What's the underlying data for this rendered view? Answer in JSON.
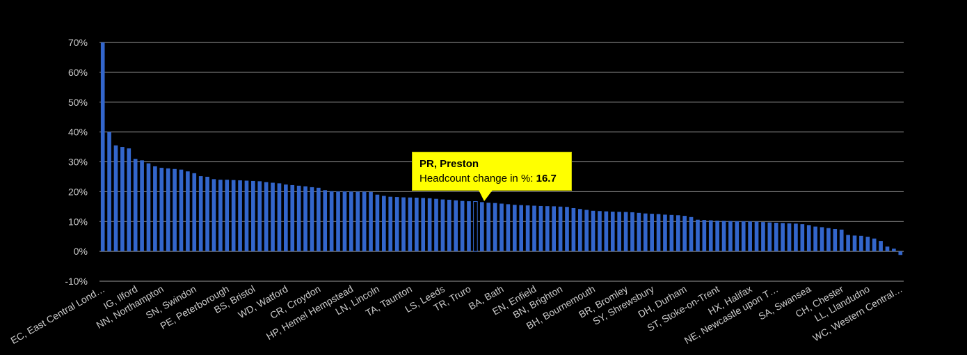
{
  "chart_data": {
    "type": "bar",
    "title": "",
    "xlabel": "",
    "ylabel": "",
    "ylim": [
      -10,
      70
    ],
    "yticks": [
      "70%",
      "60%",
      "50%",
      "40%",
      "30%",
      "20%",
      "10%",
      "0%",
      "-10%"
    ],
    "grid": true,
    "bar_color": "#3366cc",
    "background": "#000000",
    "x_tick_labels": [
      "EC, East Central Lond…",
      "IG, Ilford",
      "NN, Northampton",
      "SN, Swindon",
      "PE, Peterborough",
      "BS, Bristol",
      "WD, Watford",
      "CR, Croydon",
      "HP, Hemel Hempstead",
      "LN, Lincoln",
      "TA, Taunton",
      "LS, Leeds",
      "TR, Truro",
      "BA, Bath",
      "EN, Enfield",
      "BN, Brighton",
      "BH, Bournemouth",
      "BR, Bromley",
      "SY, Shrewsbury",
      "DH, Durham",
      "ST, Stoke-on-Trent",
      "HX, Halifax",
      "NE, Newcastle upon T…",
      "SA, Swansea",
      "CH, Chester",
      "LL, Llandudno",
      "WC, Western Central…"
    ],
    "values": [
      70,
      40,
      35.5,
      35,
      34.5,
      31,
      30.5,
      29.5,
      28.5,
      28,
      27.8,
      27.6,
      27.4,
      26.8,
      26.2,
      25.2,
      25,
      24.2,
      24,
      24,
      23.9,
      23.8,
      23.7,
      23.6,
      23.5,
      23.2,
      23,
      22.8,
      22.4,
      22.2,
      22,
      21.8,
      21.5,
      21.3,
      20.5,
      20.2,
      20.1,
      20.1,
      20.05,
      20,
      20,
      19.9,
      19,
      18.6,
      18.3,
      18.2,
      18.1,
      18.05,
      18,
      17.9,
      17.8,
      17.6,
      17.4,
      17.3,
      17.1,
      16.9,
      16.8,
      16.7,
      16.5,
      16.3,
      16.2,
      16,
      15.8,
      15.6,
      15.5,
      15.4,
      15.3,
      15.2,
      15.15,
      15.1,
      15,
      14.9,
      14.5,
      14.2,
      13.9,
      13.6,
      13.5,
      13.4,
      13.3,
      13.25,
      13.2,
      13.1,
      12.9,
      12.7,
      12.6,
      12.5,
      12.3,
      12.2,
      12.1,
      11.9,
      11.5,
      10.6,
      10.5,
      10.4,
      10.3,
      10.25,
      10.2,
      10.15,
      10.1,
      10.05,
      10,
      9.8,
      9.7,
      9.6,
      9.5,
      9.4,
      9.3,
      9.1,
      8.8,
      8.3,
      8.1,
      7.8,
      7.5,
      7.3,
      5.5,
      5.3,
      5.2,
      4.9,
      4.3,
      3.5,
      1.6,
      0.9,
      -1.2
    ],
    "highlight_index": 57
  },
  "tooltip": {
    "title": "PR, Preston",
    "label": "Headcount change in %: ",
    "value": "16.7"
  }
}
